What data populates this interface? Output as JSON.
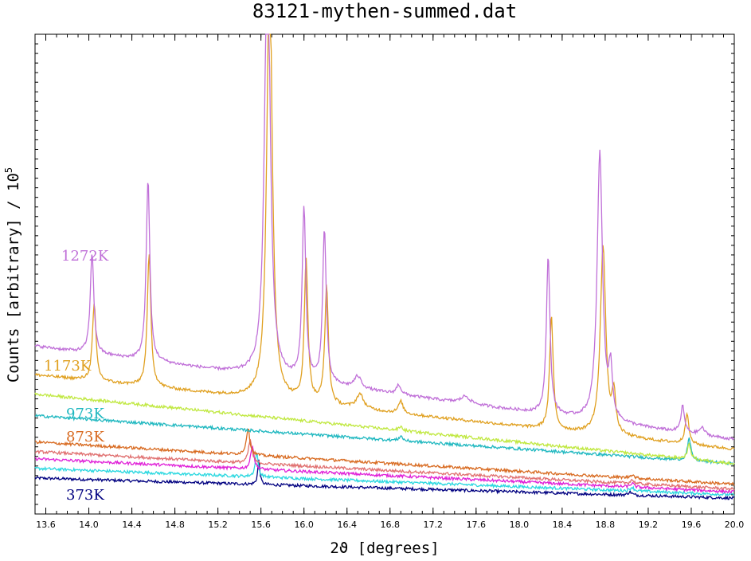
{
  "chart_data": {
    "type": "line",
    "title": "83121-mythen-summed.dat",
    "xlabel": "2ϑ  [degrees]",
    "ylabel": "Counts [arbitrary] / 10",
    "ylabel_exponent": "5",
    "xlim": [
      13.5,
      20.0
    ],
    "ylim": [
      0,
      100
    ],
    "grid": false,
    "x_ticks": [
      "13.6",
      "14.0",
      "14.4",
      "14.8",
      "15.2",
      "15.6",
      "16.0",
      "16.4",
      "16.8",
      "17.2",
      "17.6",
      "18.0",
      "18.4",
      "18.8",
      "19.2",
      "19.6",
      "20.0"
    ],
    "x_tick_values": [
      13.6,
      14.0,
      14.4,
      14.8,
      15.2,
      15.6,
      16.0,
      16.4,
      16.8,
      17.2,
      17.6,
      18.0,
      18.4,
      18.8,
      19.2,
      19.6,
      20.0
    ],
    "label_x": [
      13.75,
      13.58,
      13.78,
      13.78,
      13.78
    ],
    "series": [
      {
        "name": "373K",
        "color": "#000080",
        "baseline": [
          7.5,
          3.3
        ],
        "peaks": [
          [
            15.58,
            5.0,
            0.012
          ],
          [
            19.03,
            0.7,
            0.02
          ]
        ],
        "label_y": 4.2
      },
      {
        "name": "",
        "color": "#2bd8e0",
        "baseline": [
          9.5,
          4.0
        ],
        "peaks": [
          [
            15.56,
            5.0,
            0.016
          ],
          [
            19.05,
            0.8,
            0.02
          ]
        ],
        "label_y": null
      },
      {
        "name": "",
        "color": "#e020d8",
        "baseline": [
          11.5,
          4.6
        ],
        "peaks": [
          [
            15.52,
            5.0,
            0.018
          ],
          [
            19.05,
            0.8,
            0.02
          ]
        ],
        "label_y": null
      },
      {
        "name": "",
        "color": "#e07070",
        "baseline": [
          13.0,
          5.2
        ],
        "peaks": [
          [
            15.5,
            4.8,
            0.02
          ],
          [
            19.05,
            0.8,
            0.02
          ]
        ],
        "label_y": null
      },
      {
        "name": "873K",
        "color": "#d86a20",
        "baseline": [
          15.0,
          6.2
        ],
        "peaks": [
          [
            15.48,
            5.5,
            0.02
          ],
          [
            19.05,
            0.8,
            0.02
          ]
        ],
        "label_y": 15.5
      },
      {
        "name": "973K",
        "color": "#20b8c0",
        "baseline": [
          20.5,
          10.5
        ],
        "peaks": [
          [
            16.9,
            1.0,
            0.02
          ],
          [
            19.58,
            4.5,
            0.02
          ]
        ],
        "label_y": 21.0
      },
      {
        "name": "",
        "color": "#c0e840",
        "baseline": [
          25.0,
          10.5
        ],
        "peaks": [
          [
            16.9,
            0.8,
            0.02
          ],
          [
            19.58,
            3.0,
            0.02
          ]
        ],
        "label_y": null
      },
      {
        "name": "1173K",
        "color": "#e0a020",
        "baseline": [
          29.0,
          13.5
        ],
        "peaks": [
          [
            14.05,
            16.0,
            0.02
          ],
          [
            14.56,
            27.5,
            0.02
          ],
          [
            15.68,
            92.0,
            0.03
          ],
          [
            16.02,
            29.5,
            0.02
          ],
          [
            16.21,
            24.5,
            0.02
          ],
          [
            16.52,
            3.0,
            0.04
          ],
          [
            16.9,
            2.5,
            0.025
          ],
          [
            18.3,
            23.5,
            0.02
          ],
          [
            18.78,
            39.5,
            0.03
          ],
          [
            18.88,
            8.0,
            0.02
          ],
          [
            19.56,
            6.5,
            0.02
          ]
        ],
        "label_y": 30.0
      },
      {
        "name": "1272K",
        "color": "#c070d8",
        "baseline": [
          35.0,
          15.5
        ],
        "peaks": [
          [
            14.03,
            21.0,
            0.02
          ],
          [
            14.55,
            38.0,
            0.02
          ],
          [
            15.66,
            96.0,
            0.03
          ],
          [
            16.0,
            36.0,
            0.02
          ],
          [
            16.19,
            32.0,
            0.02
          ],
          [
            16.5,
            2.5,
            0.04
          ],
          [
            16.88,
            2.0,
            0.025
          ],
          [
            17.5,
            1.5,
            0.05
          ],
          [
            18.27,
            33.0,
            0.02
          ],
          [
            18.75,
            56.0,
            0.03
          ],
          [
            18.85,
            10.0,
            0.02
          ],
          [
            19.52,
            5.5,
            0.02
          ],
          [
            19.7,
            1.5,
            0.03
          ]
        ],
        "label_y": 55.0
      }
    ]
  }
}
